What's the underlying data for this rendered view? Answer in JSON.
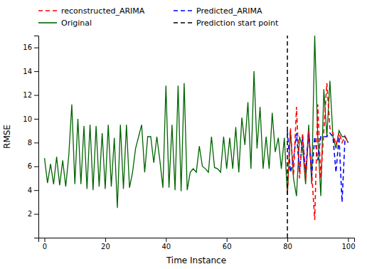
{
  "chart_data": {
    "type": "line",
    "xlabel": "Time Instance",
    "ylabel": "RMSE",
    "xlim": [
      -2,
      102
    ],
    "ylim": [
      0,
      17
    ],
    "xticks": [
      0,
      20,
      40,
      60,
      80,
      100
    ],
    "yticks": [
      2,
      4,
      6,
      8,
      10,
      12,
      14,
      16
    ],
    "legend": "upper left",
    "x": [
      0,
      1,
      2,
      3,
      4,
      5,
      6,
      7,
      8,
      9,
      10,
      11,
      12,
      13,
      14,
      15,
      16,
      17,
      18,
      19,
      20,
      21,
      22,
      23,
      24,
      25,
      26,
      27,
      28,
      29,
      30,
      31,
      32,
      33,
      34,
      35,
      36,
      37,
      38,
      39,
      40,
      41,
      42,
      43,
      44,
      45,
      46,
      47,
      48,
      49,
      50,
      51,
      52,
      53,
      54,
      55,
      56,
      57,
      58,
      59,
      60,
      61,
      62,
      63,
      64,
      65,
      66,
      67,
      68,
      69,
      70,
      71,
      72,
      73,
      74,
      75,
      76,
      77,
      78,
      79,
      80,
      81,
      82,
      83,
      84,
      85,
      86,
      87,
      88,
      89,
      90,
      91,
      92,
      93,
      94,
      95,
      96,
      97,
      98,
      99,
      100
    ],
    "series": [
      {
        "name": "reconstructed_ARIMA",
        "color": "red",
        "line_style": "dashed",
        "values": [
          null,
          null,
          null,
          null,
          null,
          null,
          null,
          null,
          null,
          null,
          null,
          null,
          null,
          null,
          null,
          null,
          null,
          null,
          null,
          null,
          null,
          null,
          null,
          null,
          null,
          null,
          null,
          null,
          null,
          null,
          null,
          null,
          null,
          null,
          null,
          null,
          null,
          null,
          null,
          null,
          null,
          null,
          null,
          null,
          null,
          null,
          null,
          null,
          null,
          null,
          null,
          null,
          null,
          null,
          null,
          null,
          null,
          null,
          null,
          null,
          null,
          null,
          null,
          null,
          null,
          null,
          null,
          null,
          null,
          null,
          null,
          null,
          null,
          null,
          null,
          null,
          null,
          null,
          null,
          null,
          3.8,
          9.2,
          5.2,
          11.0,
          5.0,
          8.8,
          4.8,
          9.0,
          5.5,
          1.5,
          11.2,
          5.0,
          9.0,
          13.0,
          9.2,
          8.8,
          7.8,
          8.8,
          8.0,
          8.5,
          8.0
        ]
      },
      {
        "name": "Predicted_ARIMA",
        "color": "blue",
        "line_style": "dashed",
        "values": [
          null,
          null,
          null,
          null,
          null,
          null,
          null,
          null,
          null,
          null,
          null,
          null,
          null,
          null,
          null,
          null,
          null,
          null,
          null,
          null,
          null,
          null,
          null,
          null,
          null,
          null,
          null,
          null,
          null,
          null,
          null,
          null,
          null,
          null,
          null,
          null,
          null,
          null,
          null,
          null,
          null,
          null,
          null,
          null,
          null,
          null,
          null,
          null,
          null,
          null,
          null,
          null,
          null,
          null,
          null,
          null,
          null,
          null,
          null,
          null,
          null,
          null,
          null,
          null,
          null,
          null,
          null,
          null,
          null,
          null,
          null,
          null,
          null,
          null,
          null,
          null,
          null,
          null,
          null,
          null,
          9.0,
          5.5,
          6.5,
          8.8,
          5.5,
          8.5,
          5.5,
          9.0,
          5.2,
          8.5,
          6.5,
          8.5,
          8.5,
          8.5,
          8.8,
          8.5,
          5.5,
          8.5,
          3.0,
          8.5,
          8.0
        ]
      },
      {
        "name": "Original",
        "color": "#006400",
        "line_style": "solid",
        "values": [
          6.7,
          4.6,
          6.2,
          4.5,
          6.8,
          4.4,
          6.5,
          4.3,
          6.9,
          11.2,
          4.5,
          10.0,
          4.5,
          9.4,
          4.1,
          9.5,
          4.0,
          9.4,
          4.3,
          8.8,
          4.1,
          9.5,
          4.3,
          8.4,
          2.5,
          9.5,
          4.1,
          9.5,
          4.2,
          5.5,
          7.5,
          8.5,
          9.5,
          5.5,
          8.5,
          8.5,
          6.3,
          8.5,
          6.5,
          4.2,
          12.8,
          4.2,
          9.5,
          4.0,
          12.8,
          3.9,
          13.0,
          4.0,
          5.5,
          5.8,
          5.5,
          7.7,
          6.0,
          5.8,
          5.5,
          8.5,
          5.9,
          5.8,
          5.5,
          8.5,
          5.8,
          8.4,
          5.8,
          9.3,
          5.5,
          10.1,
          7.8,
          11.4,
          5.8,
          14.0,
          7.5,
          11.0,
          5.8,
          8.5,
          5.8,
          10.5,
          7.2,
          8.4,
          5.8,
          8.4,
          3.6,
          9.0,
          5.0,
          3.5,
          8.5,
          7.5,
          4.5,
          9.5,
          4.5,
          17.0,
          8.5,
          3.5,
          12.5,
          8.5,
          13.2,
          8.5,
          7.5,
          9.0,
          8.5,
          8.5,
          8.0
        ]
      }
    ],
    "vline": {
      "name": "Prediction start point",
      "x": 80,
      "color": "black",
      "line_style": "dashed"
    }
  }
}
